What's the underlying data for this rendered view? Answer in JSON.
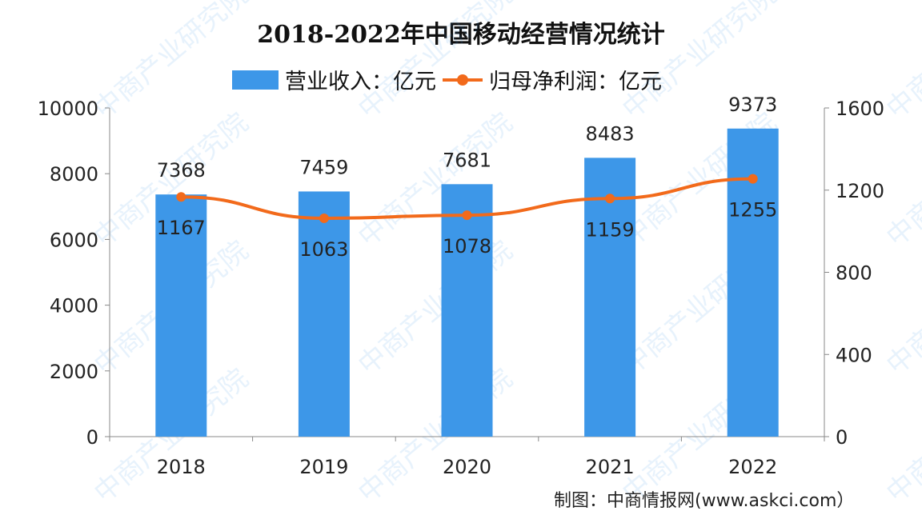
{
  "chart_data": {
    "type": "bar+line",
    "title": "2018-2022年中国移动经营情况统计",
    "categories": [
      "2018",
      "2019",
      "2020",
      "2021",
      "2022"
    ],
    "series": [
      {
        "name": "营业收入：亿元",
        "type": "bar",
        "axis": "left",
        "color": "#3d97e8",
        "values": [
          7368,
          7459,
          7681,
          8483,
          9373
        ]
      },
      {
        "name": "归母净利润：亿元",
        "type": "line",
        "axis": "right",
        "color": "#f26a1b",
        "values": [
          1167,
          1063,
          1078,
          1159,
          1255
        ]
      }
    ],
    "y_left": {
      "range": [
        0,
        10000
      ],
      "ticks": [
        0,
        2000,
        4000,
        6000,
        8000,
        10000
      ]
    },
    "y_right": {
      "range": [
        0,
        1600
      ],
      "ticks": [
        0,
        400,
        800,
        1200,
        1600
      ]
    },
    "grid": false,
    "legend_position": "top"
  },
  "source": "制图：中商情报网(www.askci.com）",
  "watermark": "中商产业研究院"
}
